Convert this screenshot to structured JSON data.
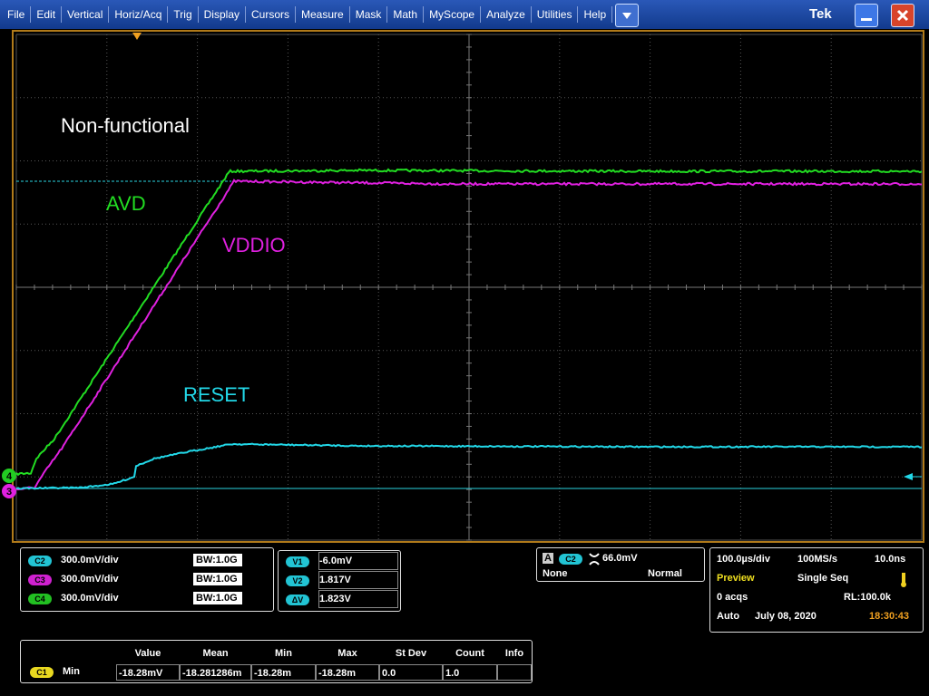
{
  "menu": {
    "items": [
      "File",
      "Edit",
      "Vertical",
      "Horiz/Acq",
      "Trig",
      "Display",
      "Cursors",
      "Measure",
      "Mask",
      "Math",
      "MyScope",
      "Analyze",
      "Utilities",
      "Help"
    ],
    "brand": "Tek"
  },
  "graticule": {
    "annotations": {
      "title": "Non-functional",
      "avd": "AVD",
      "vddio": "VDDIO",
      "reset": "RESET"
    },
    "markers": {
      "ch4": "4",
      "ch3": "3"
    }
  },
  "channels": [
    {
      "id": "C2",
      "scale": "300.0mV/div",
      "bandwidth": "BW:1.0G"
    },
    {
      "id": "C3",
      "scale": "300.0mV/div",
      "bandwidth": "BW:1.0G"
    },
    {
      "id": "C4",
      "scale": "300.0mV/div",
      "bandwidth": "BW:1.0G"
    }
  ],
  "cursors": [
    {
      "label": "V1",
      "value": "-6.0mV"
    },
    {
      "label": "V2",
      "value": "1.817V"
    },
    {
      "label": "ΔV",
      "value": "1.823V"
    }
  ],
  "trigger": {
    "event": "A",
    "source": "C2",
    "level": "66.0mV",
    "coupling": "None",
    "mode": "Normal"
  },
  "horizontal": {
    "scale": "100.0µs/div",
    "sample_rate": "100MS/s",
    "resolution": "10.0ns",
    "state": "Preview",
    "sequence": "Single Seq",
    "acquisitions": "0 acqs",
    "record_length": "RL:100.0k",
    "trigger_mode": "Auto",
    "date": "July 08, 2020",
    "time": "18:30:43"
  },
  "measurements": {
    "headers": [
      "Value",
      "Mean",
      "Min",
      "Max",
      "St Dev",
      "Count",
      "Info"
    ],
    "rows": [
      {
        "source": "C1",
        "type": "Min",
        "cells": [
          "-18.28mV",
          "-18.281286m",
          "-18.28m",
          "-18.28m",
          "0.0",
          "1.0",
          ""
        ]
      }
    ]
  }
}
